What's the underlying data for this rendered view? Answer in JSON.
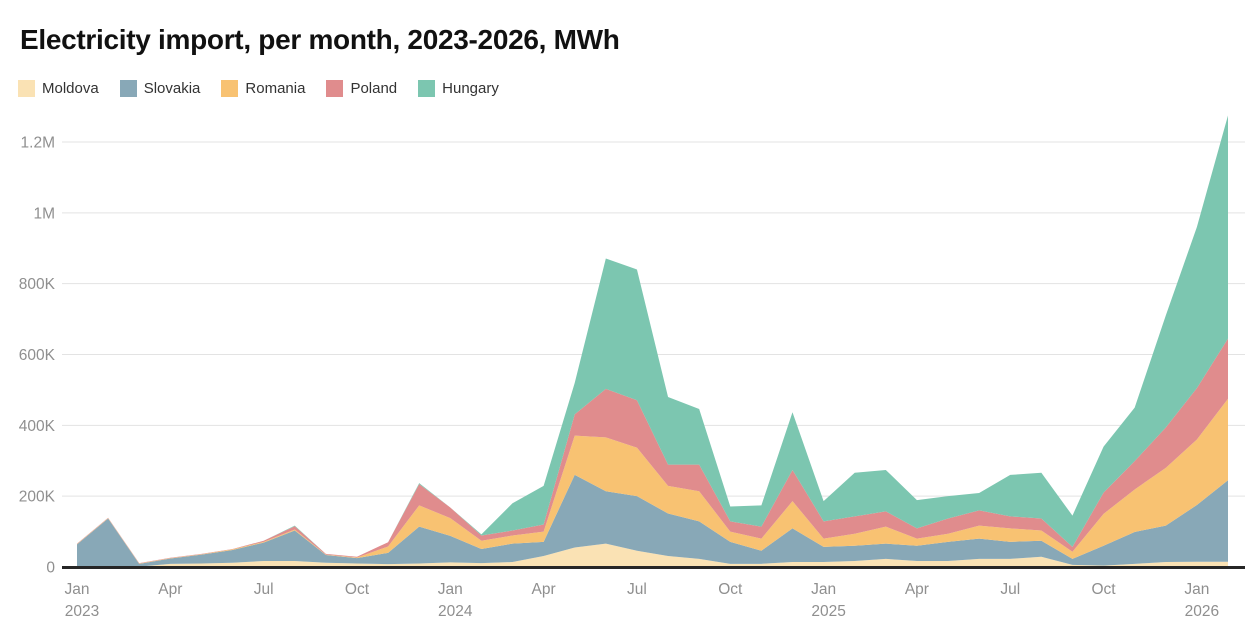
{
  "title": "Electricity import, per month, 2023-2026, MWh",
  "chart_data": {
    "type": "area",
    "stacked": true,
    "unit": "MWh",
    "title": "Electricity import, per month, 2023-2026, MWh",
    "legend_position": "top-left",
    "grid": "horizontal",
    "background": "#ffffff",
    "gridline_color": "#e3e3e3",
    "axis_line_color": "#262626",
    "tick_label_color": "#8f8f8f",
    "ylim": [
      0,
      1285000
    ],
    "y_ticks": [
      0,
      200000,
      400000,
      600000,
      800000,
      1000000,
      1200000
    ],
    "y_tick_labels": [
      "0",
      "200K",
      "400K",
      "600K",
      "800K",
      "1M",
      "1.2M"
    ],
    "x": [
      "Jan 2023",
      "Feb 2023",
      "Mar 2023",
      "Apr 2023",
      "May 2023",
      "Jun 2023",
      "Jul 2023",
      "Aug 2023",
      "Sep 2023",
      "Oct 2023",
      "Nov 2023",
      "Dec 2023",
      "Jan 2024",
      "Feb 2024",
      "Mar 2024",
      "Apr 2024",
      "May 2024",
      "Jun 2024",
      "Jul 2024",
      "Aug 2024",
      "Sep 2024",
      "Oct 2024",
      "Nov 2024",
      "Dec 2024",
      "Jan 2025",
      "Feb 2025",
      "Mar 2025",
      "Apr 2025",
      "May 2025",
      "Jun 2025",
      "Jul 2025",
      "Aug 2025",
      "Sep 2025",
      "Oct 2025",
      "Nov 2025",
      "Dec 2025",
      "Jan 2026",
      "Feb 2026"
    ],
    "x_tick_every_months": 3,
    "series": [
      {
        "name": "Moldova",
        "color": "#fae2b4",
        "values": [
          2000,
          2000,
          1000,
          9000,
          10000,
          12000,
          17000,
          17000,
          12000,
          10000,
          8000,
          10000,
          13000,
          11000,
          14000,
          31000,
          55000,
          66000,
          46000,
          31000,
          23000,
          9000,
          9000,
          14000,
          14000,
          17000,
          23000,
          17000,
          17000,
          23000,
          23000,
          29000,
          6000,
          4000,
          9000,
          14000,
          15000,
          15000
        ]
      },
      {
        "name": "Slovakia",
        "color": "#88a8b7",
        "values": [
          62000,
          135000,
          8000,
          15000,
          25000,
          36000,
          52000,
          86000,
          22000,
          15000,
          32000,
          104000,
          75000,
          40000,
          52000,
          40000,
          205000,
          148000,
          154000,
          120000,
          106000,
          62000,
          37000,
          95000,
          43000,
          43000,
          43000,
          43000,
          54000,
          57000,
          48000,
          45000,
          17000,
          56000,
          90000,
          103000,
          160000,
          230000
        ]
      },
      {
        "name": "Romania",
        "color": "#f8c272",
        "values": [
          1000,
          1000,
          1000,
          1000,
          1000,
          2000,
          2000,
          3000,
          1000,
          2000,
          18000,
          60000,
          50000,
          23000,
          23000,
          29000,
          111000,
          152000,
          137000,
          78000,
          85000,
          29000,
          34000,
          77000,
          23000,
          34000,
          48000,
          20000,
          23000,
          37000,
          38000,
          29000,
          20000,
          90000,
          120000,
          163000,
          185000,
          230000
        ]
      },
      {
        "name": "Poland",
        "color": "#e08c8d",
        "values": [
          1000,
          1000,
          1000,
          1000,
          1000,
          1000,
          3000,
          9000,
          2000,
          2000,
          12000,
          60000,
          30000,
          15000,
          14000,
          20000,
          60000,
          137000,
          134000,
          60000,
          75000,
          29000,
          34000,
          88000,
          49000,
          49000,
          43000,
          29000,
          43000,
          43000,
          34000,
          34000,
          14000,
          60000,
          80000,
          114000,
          145000,
          170000
        ]
      },
      {
        "name": "Hungary",
        "color": "#7cc6b0",
        "values": [
          0,
          0,
          0,
          0,
          0,
          0,
          0,
          2000,
          0,
          0,
          0,
          3000,
          0,
          3000,
          77000,
          109000,
          89000,
          368000,
          369000,
          191000,
          157000,
          42000,
          60000,
          163000,
          57000,
          123000,
          117000,
          80000,
          63000,
          49000,
          117000,
          129000,
          88000,
          130000,
          151000,
          316000,
          455000,
          630000
        ]
      }
    ]
  }
}
